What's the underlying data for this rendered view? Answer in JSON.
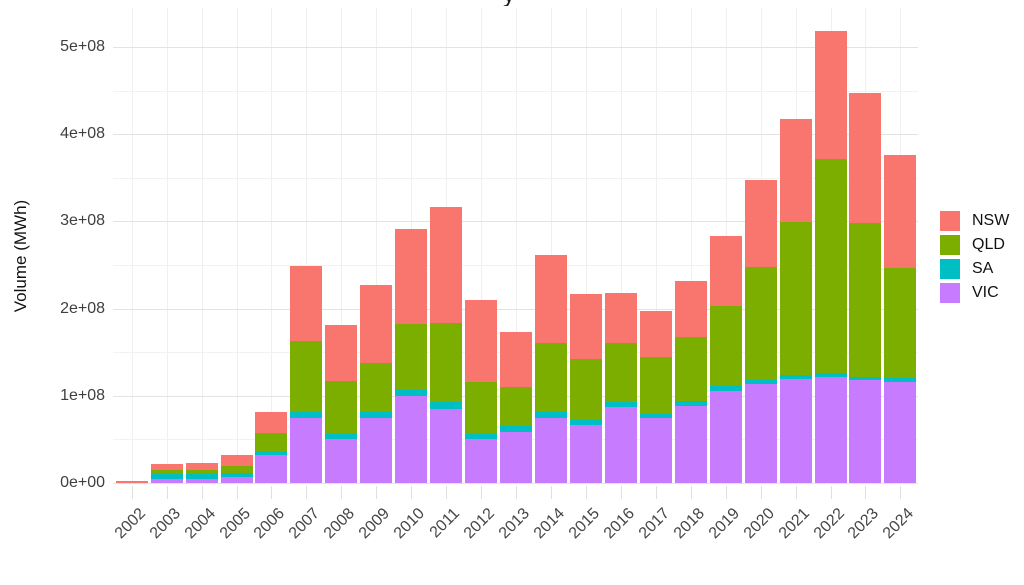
{
  "partial_title_glyph": "y",
  "chart_data": {
    "type": "bar",
    "stacked": true,
    "title": "",
    "xlabel": "",
    "ylabel": "Volume (MWh)",
    "legend_position": "right",
    "grid": true,
    "ylim": [
      0,
      520000000
    ],
    "yticks": [
      {
        "value": 0,
        "label": "0e+00"
      },
      {
        "value": 100000000,
        "label": "1e+08"
      },
      {
        "value": 200000000,
        "label": "2e+08"
      },
      {
        "value": 300000000,
        "label": "3e+08"
      },
      {
        "value": 400000000,
        "label": "4e+08"
      },
      {
        "value": 500000000,
        "label": "5e+08"
      }
    ],
    "categories": [
      "2002",
      "2003",
      "2004",
      "2005",
      "2006",
      "2007",
      "2008",
      "2009",
      "2010",
      "2011",
      "2012",
      "2013",
      "2014",
      "2015",
      "2016",
      "2017",
      "2018",
      "2019",
      "2020",
      "2021",
      "2022",
      "2023",
      "2024"
    ],
    "stack_order_bottom_to_top": [
      "VIC",
      "SA",
      "QLD",
      "NSW"
    ],
    "series": [
      {
        "name": "NSW",
        "color": "#F8766D",
        "values": [
          2000000,
          7000000,
          8000000,
          13000000,
          24000000,
          86000000,
          64000000,
          89000000,
          109000000,
          132000000,
          94000000,
          63000000,
          102000000,
          75000000,
          58000000,
          52000000,
          65000000,
          80000000,
          100000000,
          119000000,
          146000000,
          149000000,
          129000000
        ]
      },
      {
        "name": "QLD",
        "color": "#7CAE00",
        "values": [
          0,
          5000000,
          5000000,
          7000000,
          21000000,
          82000000,
          61000000,
          57000000,
          75000000,
          91000000,
          60000000,
          45000000,
          79000000,
          70000000,
          67000000,
          66000000,
          73000000,
          92000000,
          130000000,
          175000000,
          246000000,
          177000000,
          127000000
        ]
      },
      {
        "name": "SA",
        "color": "#00BFC4",
        "values": [
          0,
          5000000,
          5000000,
          5000000,
          4000000,
          6000000,
          5000000,
          6000000,
          7000000,
          8000000,
          6000000,
          6000000,
          6000000,
          6000000,
          6000000,
          4000000,
          6000000,
          6000000,
          5000000,
          5000000,
          4000000,
          3000000,
          4000000
        ]
      },
      {
        "name": "VIC",
        "color": "#C77CFF",
        "values": [
          0,
          5000000,
          5000000,
          7000000,
          32000000,
          75000000,
          51000000,
          75000000,
          100000000,
          85000000,
          50000000,
          59000000,
          75000000,
          66000000,
          87000000,
          75000000,
          88000000,
          105000000,
          113000000,
          119000000,
          122000000,
          118000000,
          116000000
        ]
      }
    ],
    "grid_colors": {
      "major": "#e3e3e3",
      "minor": "#f2f2f2",
      "vertical": "#f0f0f0"
    }
  }
}
